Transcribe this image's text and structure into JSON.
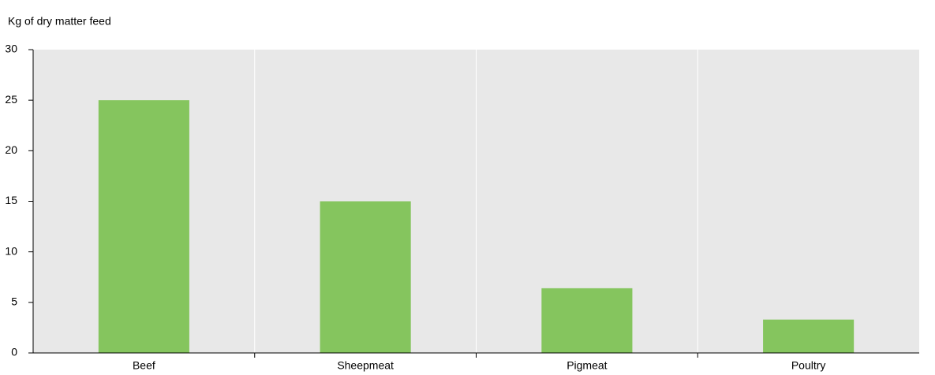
{
  "chart_data": {
    "type": "bar",
    "y_label": "Kg of dry matter feed",
    "categories": [
      "Beef",
      "Sheepmeat",
      "Pigmeat",
      "Poultry"
    ],
    "values": [
      25,
      15,
      6.4,
      3.3
    ],
    "color": "#85c55e",
    "ylim": [
      0,
      30
    ],
    "yticks": [
      0,
      5,
      10,
      15,
      20,
      25,
      30
    ],
    "grid": false
  }
}
